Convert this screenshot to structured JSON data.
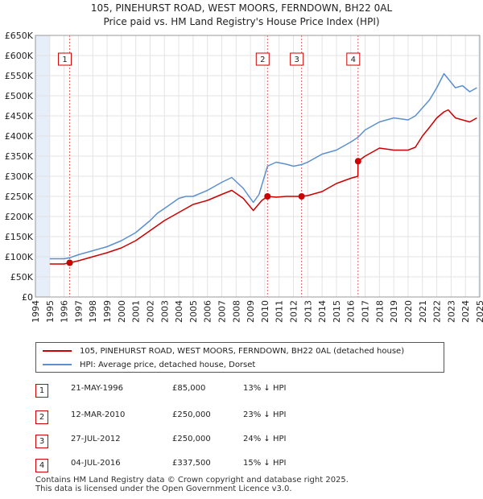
{
  "header": {
    "title": "105, PINEHURST ROAD, WEST MOORS, FERNDOWN, BH22 0AL",
    "subtitle": "Price paid vs. HM Land Registry's House Price Index (HPI)"
  },
  "legend": {
    "property_label": "105, PINEHURST ROAD, WEST MOORS, FERNDOWN, BH22 0AL (detached house)",
    "hpi_label": "HPI: Average price, detached house, Dorset"
  },
  "colors": {
    "property": "#cc0000",
    "hpi": "#5b8fd0",
    "shade": "#e6eef9",
    "marker_line": "#e06060"
  },
  "sales": [
    {
      "num": "1",
      "date": "21-MAY-1996",
      "price": "£85,000",
      "hpi_diff": "13% ↓ HPI"
    },
    {
      "num": "2",
      "date": "12-MAR-2010",
      "price": "£250,000",
      "hpi_diff": "23% ↓ HPI"
    },
    {
      "num": "3",
      "date": "27-JUL-2012",
      "price": "£250,000",
      "hpi_diff": "24% ↓ HPI"
    },
    {
      "num": "4",
      "date": "04-JUL-2016",
      "price": "£337,500",
      "hpi_diff": "15% ↓ HPI"
    }
  ],
  "footer": {
    "line1": "Contains HM Land Registry data © Crown copyright and database right 2025.",
    "line2": "This data is licensed under the Open Government Licence v3.0."
  },
  "chart_data": {
    "type": "line",
    "title": "105, PINEHURST ROAD, WEST MOORS, FERNDOWN, BH22 0AL",
    "subtitle": "Price paid vs. HM Land Registry's House Price Index (HPI)",
    "xlim": [
      1994,
      2025
    ],
    "ylim": [
      0,
      650000
    ],
    "y_ticks": [
      0,
      50000,
      100000,
      150000,
      200000,
      250000,
      300000,
      350000,
      400000,
      450000,
      500000,
      550000,
      600000,
      650000
    ],
    "y_tick_labels": [
      "£0",
      "£50K",
      "£100K",
      "£150K",
      "£200K",
      "£250K",
      "£300K",
      "£350K",
      "£400K",
      "£450K",
      "£500K",
      "£550K",
      "£600K",
      "£650K"
    ],
    "x_ticks": [
      1994,
      1995,
      1996,
      1997,
      1998,
      1999,
      2000,
      2001,
      2002,
      2003,
      2004,
      2005,
      2006,
      2007,
      2008,
      2009,
      2010,
      2011,
      2012,
      2013,
      2014,
      2015,
      2016,
      2017,
      2018,
      2019,
      2020,
      2021,
      2022,
      2023,
      2024,
      2025
    ],
    "shaded_ranges": [
      [
        1994,
        1995.0
      ],
      [
        2024.9,
        2025
      ]
    ],
    "sale_markers": [
      {
        "label": "1",
        "x": 1996.39,
        "y": 85000
      },
      {
        "label": "2",
        "x": 2010.19,
        "y": 250000
      },
      {
        "label": "3",
        "x": 2012.57,
        "y": 250000
      },
      {
        "label": "4",
        "x": 2016.51,
        "y": 337500
      }
    ],
    "series": [
      {
        "name": "HPI: Average price, detached house, Dorset",
        "color": "#5b8fd0",
        "x": [
          1995.0,
          1996.0,
          1996.39,
          1997.0,
          1998.0,
          1999.0,
          2000.0,
          2001.0,
          2002.0,
          2002.5,
          2003.0,
          2004.0,
          2004.5,
          2005.0,
          2006.0,
          2007.0,
          2007.7,
          2008.5,
          2009.2,
          2009.6,
          2010.19,
          2010.8,
          2011.5,
          2012.0,
          2012.57,
          2013.0,
          2014.0,
          2015.0,
          2016.0,
          2016.51,
          2017.0,
          2018.0,
          2019.0,
          2020.0,
          2020.5,
          2021.0,
          2021.5,
          2022.0,
          2022.5,
          2022.8,
          2023.3,
          2023.8,
          2024.3,
          2024.8
        ],
        "y": [
          95000,
          95000,
          97500,
          105000,
          115000,
          125000,
          140000,
          160000,
          190000,
          208000,
          220000,
          245000,
          250000,
          250000,
          265000,
          285000,
          297000,
          270000,
          235000,
          255000,
          325000,
          335000,
          330000,
          325000,
          329000,
          335000,
          355000,
          365000,
          385000,
          397000,
          415000,
          435000,
          445000,
          440000,
          450000,
          470000,
          490000,
          520000,
          555000,
          542000,
          520000,
          525000,
          510000,
          520000
        ]
      },
      {
        "name": "105, PINEHURST ROAD, WEST MOORS, FERNDOWN, BH22 0AL (detached house)",
        "color": "#cc0000",
        "x": [
          1995.0,
          1996.0,
          1996.39,
          1997.0,
          1998.0,
          1999.0,
          2000.0,
          2001.0,
          2002.0,
          2003.0,
          2004.0,
          2005.0,
          2006.0,
          2007.0,
          2007.7,
          2008.5,
          2009.2,
          2009.8,
          2010.19,
          2010.8,
          2011.5,
          2012.0,
          2012.57,
          2013.0,
          2014.0,
          2015.0,
          2016.0,
          2016.5,
          2016.51,
          2017.0,
          2018.0,
          2019.0,
          2020.0,
          2020.5,
          2021.0,
          2021.5,
          2022.0,
          2022.5,
          2022.8,
          2023.3,
          2023.8,
          2024.3,
          2024.8
        ],
        "y": [
          82000,
          82000,
          85000,
          90000,
          100000,
          110000,
          122000,
          140000,
          165000,
          190000,
          210000,
          230000,
          240000,
          255000,
          265000,
          245000,
          215000,
          240000,
          250000,
          248000,
          250000,
          250000,
          250000,
          252000,
          262000,
          282000,
          295000,
          300000,
          337500,
          350000,
          370000,
          365000,
          365000,
          372000,
          400000,
          422000,
          445000,
          460000,
          465000,
          445000,
          440000,
          435000,
          445000
        ]
      }
    ]
  }
}
